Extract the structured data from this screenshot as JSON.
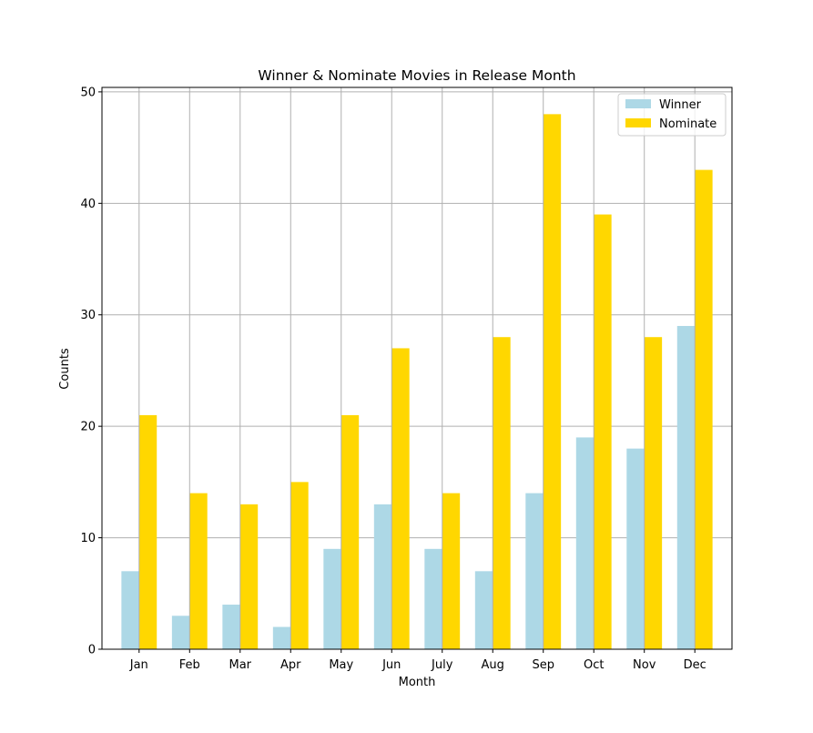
{
  "chart_data": {
    "type": "bar",
    "title": "Winner & Nominate Movies in Release Month",
    "xlabel": "Month",
    "ylabel": "Counts",
    "categories": [
      "Jan",
      "Feb",
      "Mar",
      "Apr",
      "May",
      "Jun",
      "July",
      "Aug",
      "Sep",
      "Oct",
      "Nov",
      "Dec"
    ],
    "series": [
      {
        "name": "Winner",
        "color": "#add8e6",
        "values": [
          7,
          3,
          4,
          2,
          9,
          13,
          9,
          7,
          14,
          19,
          18,
          29
        ]
      },
      {
        "name": "Nominate",
        "color": "#ffd700",
        "values": [
          21,
          14,
          13,
          15,
          21,
          27,
          14,
          28,
          48,
          39,
          28,
          43
        ]
      }
    ],
    "ylim": [
      0,
      50.4
    ],
    "yticks": [
      0,
      10,
      20,
      30,
      40,
      50
    ],
    "grid": true,
    "grid_color": "#b0b0b0",
    "legend_position": "top-right"
  }
}
